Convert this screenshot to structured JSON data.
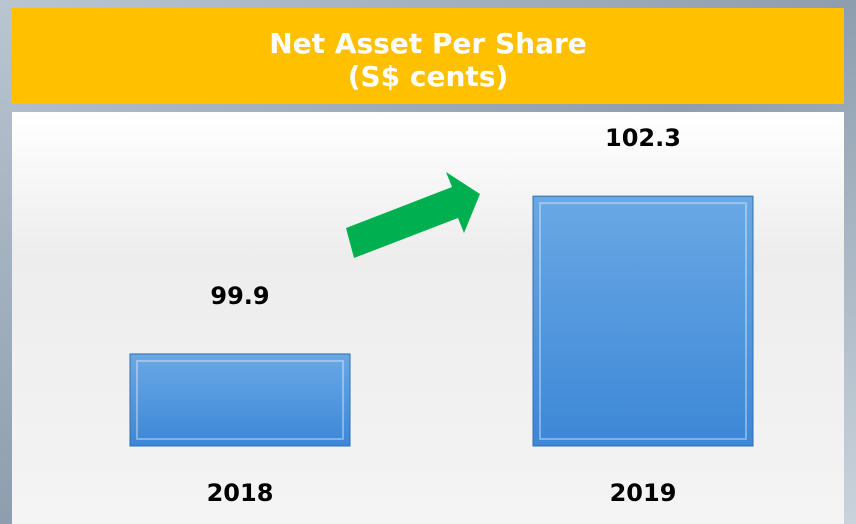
{
  "chart_data": {
    "type": "bar",
    "title": "Net Asset Per Share",
    "subtitle": "(S$ cents)",
    "categories": [
      "2018",
      "2019"
    ],
    "values": [
      99.9,
      102.3
    ],
    "color": "#4a90d9",
    "ylim": [
      98.5,
      102.5
    ]
  }
}
